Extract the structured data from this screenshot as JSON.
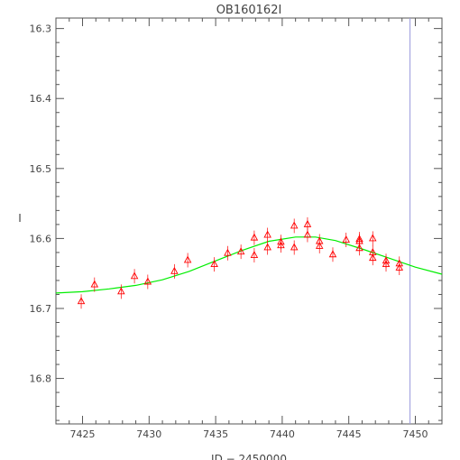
{
  "chart_data": {
    "type": "scatter",
    "title": "OB160162I",
    "xlabel": "JD − 2450000",
    "ylabel": "I",
    "xlim": [
      7423.0,
      7452.0
    ],
    "ylim": [
      16.865,
      16.285
    ],
    "y_inverted": true,
    "x_ticks": [
      7425,
      7430,
      7435,
      7440,
      7445,
      7450
    ],
    "y_ticks": [
      "16.3",
      "16.4",
      "16.5",
      "16.6",
      "16.7",
      "16.8"
    ],
    "grid": false,
    "vertical_marker_x": 7449.6,
    "points": [
      {
        "x": 7424.9,
        "y": 16.69
      },
      {
        "x": 7425.9,
        "y": 16.666
      },
      {
        "x": 7427.9,
        "y": 16.676
      },
      {
        "x": 7428.9,
        "y": 16.654
      },
      {
        "x": 7429.9,
        "y": 16.662
      },
      {
        "x": 7431.9,
        "y": 16.647
      },
      {
        "x": 7432.9,
        "y": 16.631
      },
      {
        "x": 7434.9,
        "y": 16.637
      },
      {
        "x": 7435.9,
        "y": 16.621
      },
      {
        "x": 7436.9,
        "y": 16.619
      },
      {
        "x": 7437.9,
        "y": 16.624
      },
      {
        "x": 7437.9,
        "y": 16.599
      },
      {
        "x": 7438.9,
        "y": 16.613
      },
      {
        "x": 7438.9,
        "y": 16.595
      },
      {
        "x": 7439.9,
        "y": 16.61
      },
      {
        "x": 7439.9,
        "y": 16.605
      },
      {
        "x": 7440.9,
        "y": 16.613
      },
      {
        "x": 7440.9,
        "y": 16.582
      },
      {
        "x": 7441.9,
        "y": 16.595
      },
      {
        "x": 7441.9,
        "y": 16.58
      },
      {
        "x": 7442.8,
        "y": 16.604
      },
      {
        "x": 7442.8,
        "y": 16.611
      },
      {
        "x": 7443.8,
        "y": 16.623
      },
      {
        "x": 7444.8,
        "y": 16.602
      },
      {
        "x": 7445.8,
        "y": 16.601
      },
      {
        "x": 7445.8,
        "y": 16.604
      },
      {
        "x": 7445.8,
        "y": 16.614
      },
      {
        "x": 7446.8,
        "y": 16.6
      },
      {
        "x": 7446.8,
        "y": 16.62
      },
      {
        "x": 7446.8,
        "y": 16.628
      },
      {
        "x": 7447.8,
        "y": 16.632
      },
      {
        "x": 7447.8,
        "y": 16.637
      },
      {
        "x": 7448.8,
        "y": 16.636
      },
      {
        "x": 7448.8,
        "y": 16.642
      }
    ],
    "model_curve": [
      {
        "x": 7423.0,
        "y": 16.678
      },
      {
        "x": 7425.0,
        "y": 16.676
      },
      {
        "x": 7427.0,
        "y": 16.672
      },
      {
        "x": 7429.0,
        "y": 16.667
      },
      {
        "x": 7431.0,
        "y": 16.659
      },
      {
        "x": 7433.0,
        "y": 16.647
      },
      {
        "x": 7435.0,
        "y": 16.632
      },
      {
        "x": 7437.0,
        "y": 16.617
      },
      {
        "x": 7439.0,
        "y": 16.604
      },
      {
        "x": 7441.0,
        "y": 16.598
      },
      {
        "x": 7442.5,
        "y": 16.598
      },
      {
        "x": 7444.0,
        "y": 16.603
      },
      {
        "x": 7446.0,
        "y": 16.615
      },
      {
        "x": 7448.0,
        "y": 16.628
      },
      {
        "x": 7450.0,
        "y": 16.641
      },
      {
        "x": 7452.0,
        "y": 16.651
      }
    ],
    "colors": {
      "points": "#ff0000",
      "model": "#00ee00",
      "marker": "#9999dd",
      "axes": "#555555"
    }
  }
}
